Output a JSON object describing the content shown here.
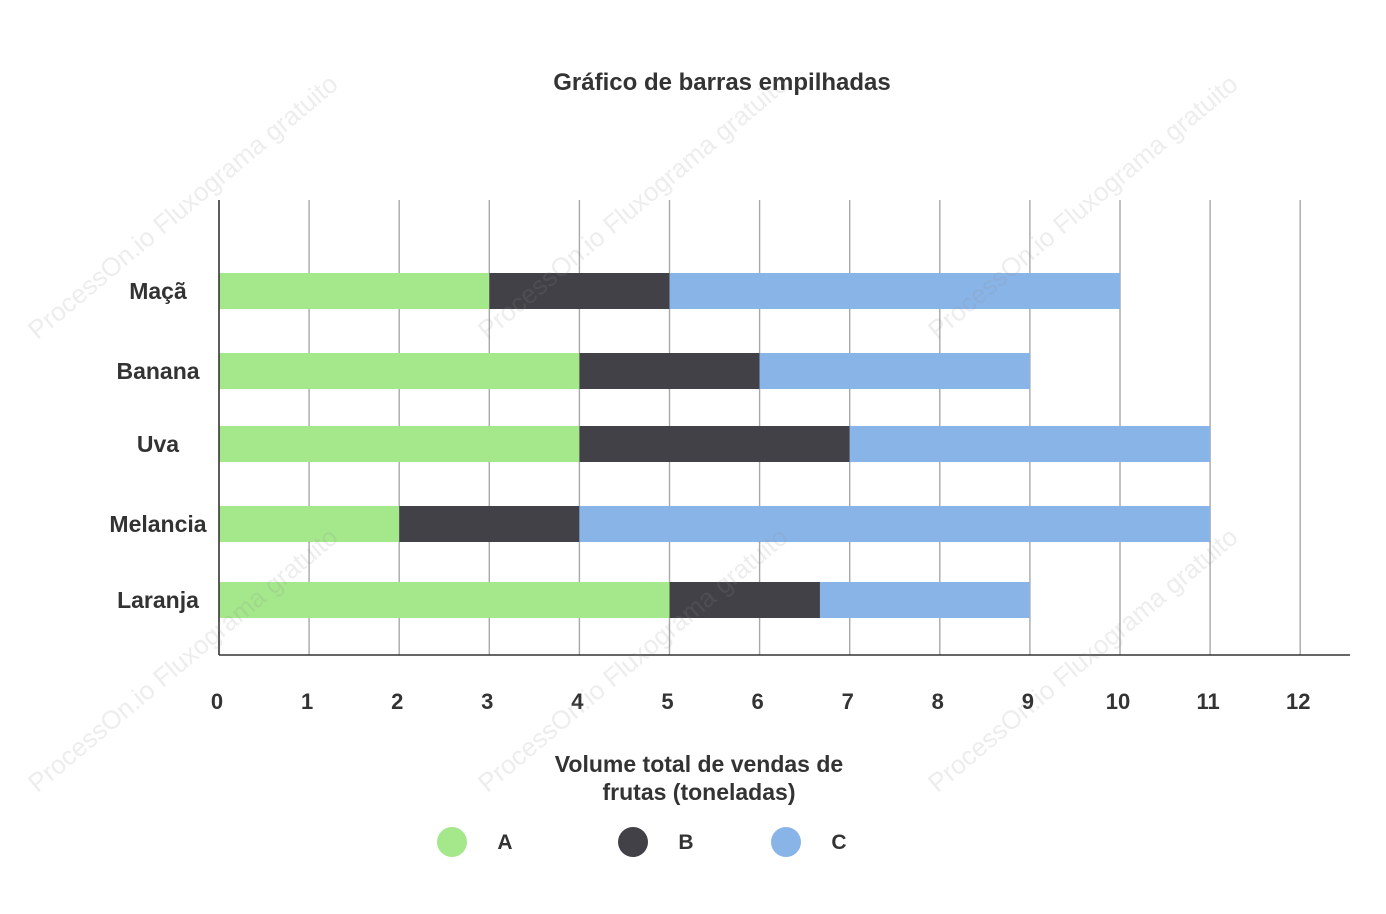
{
  "watermark": "ProcessOn.io Fluxograma gratuito",
  "chart_data": {
    "type": "bar",
    "orientation": "horizontal",
    "stacked": true,
    "title": "Gráfico de barras empilhadas",
    "xlabel": "Volume total de vendas de frutas (toneladas)",
    "xlabel_lines": [
      "Volume total de vendas de",
      "frutas (toneladas)"
    ],
    "ylabel": "",
    "categories": [
      "Maçã",
      "Banana",
      "Uva",
      "Melancia",
      "Laranja"
    ],
    "series": [
      {
        "name": "A",
        "color": "#a5e88c",
        "values": [
          3,
          4,
          4,
          2,
          5
        ]
      },
      {
        "name": "B",
        "color": "#424147",
        "values": [
          2,
          2,
          3,
          2,
          1.67
        ]
      },
      {
        "name": "C",
        "color": "#89b4e7",
        "values": [
          5,
          3,
          4,
          7,
          2.33
        ]
      }
    ],
    "xlim": [
      0,
      12
    ],
    "xticks": [
      "0",
      "1",
      "2",
      "3",
      "4",
      "5",
      "6",
      "7",
      "8",
      "9",
      "10",
      "11",
      "12"
    ],
    "grid": true,
    "legend_position": "bottom"
  }
}
